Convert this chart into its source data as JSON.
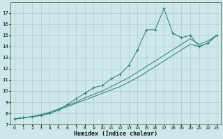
{
  "xlabel": "Humidex (Indice chaleur)",
  "bg_color": "#cde8ea",
  "grid_color": "#b0c8ca",
  "line_color": "#2e7d6e",
  "xlim": [
    -0.5,
    23.5
  ],
  "ylim": [
    7,
    18
  ],
  "xticks": [
    0,
    1,
    2,
    3,
    4,
    5,
    6,
    7,
    8,
    9,
    10,
    11,
    12,
    13,
    14,
    15,
    16,
    17,
    18,
    19,
    20,
    21,
    22,
    23
  ],
  "yticks": [
    7,
    8,
    9,
    10,
    11,
    12,
    13,
    14,
    15,
    16,
    17
  ],
  "line1_x": [
    0,
    1,
    2,
    3,
    4,
    5,
    6,
    7,
    8,
    9,
    10,
    11,
    12,
    13,
    14,
    15,
    16,
    17,
    18,
    19,
    20,
    21,
    22,
    23
  ],
  "line1_y": [
    7.5,
    7.6,
    7.7,
    7.8,
    8.0,
    8.3,
    8.8,
    9.3,
    9.8,
    10.3,
    10.5,
    11.1,
    11.5,
    12.3,
    13.7,
    15.5,
    15.5,
    17.4,
    15.2,
    14.8,
    15.0,
    14.0,
    14.3,
    15.0
  ],
  "line2_x": [
    0,
    1,
    2,
    3,
    4,
    5,
    6,
    7,
    8,
    9,
    10,
    11,
    12,
    13,
    14,
    15,
    16,
    17,
    18,
    19,
    20,
    21,
    22,
    23
  ],
  "line2_y": [
    7.5,
    7.6,
    7.7,
    7.8,
    8.0,
    8.3,
    8.6,
    8.9,
    9.2,
    9.5,
    9.8,
    10.1,
    10.4,
    10.8,
    11.2,
    11.7,
    12.2,
    12.7,
    13.2,
    13.7,
    14.2,
    14.0,
    14.3,
    15.0
  ],
  "line3_x": [
    0,
    1,
    2,
    3,
    4,
    5,
    6,
    7,
    8,
    9,
    10,
    11,
    12,
    13,
    14,
    15,
    16,
    17,
    18,
    19,
    20,
    21,
    22,
    23
  ],
  "line3_y": [
    7.5,
    7.6,
    7.7,
    7.9,
    8.1,
    8.4,
    8.7,
    9.0,
    9.4,
    9.7,
    10.0,
    10.4,
    10.8,
    11.2,
    11.7,
    12.2,
    12.7,
    13.2,
    13.7,
    14.2,
    14.7,
    14.2,
    14.5,
    15.0
  ]
}
